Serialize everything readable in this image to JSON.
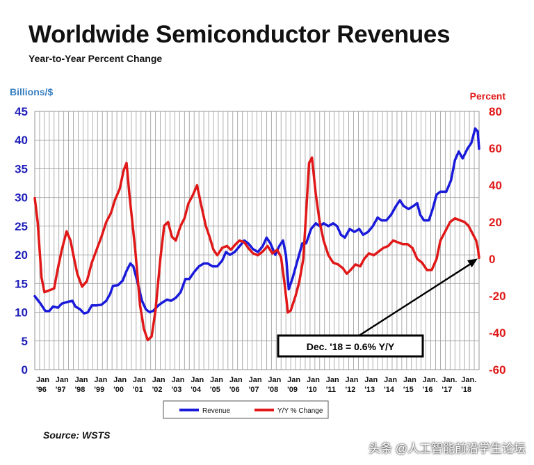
{
  "page": {
    "title": "Worldwide Semiconductor Revenues",
    "subtitle": "Year-to-Year Percent Change",
    "source": "Source: WSTS",
    "watermark": "头条 @人工智能前沿学生论坛"
  },
  "chart_data": {
    "type": "line",
    "title": "Worldwide Semiconductor Revenues",
    "subtitle": "Year-to-Year Percent Change",
    "left_axis_label": "Billions/$",
    "right_axis_label": "Percent",
    "left_ylim": [
      0,
      45
    ],
    "right_ylim": [
      -60,
      80
    ],
    "left_ticks": [
      "0",
      "5",
      "10",
      "15",
      "20",
      "25",
      "30",
      "35",
      "40",
      "45"
    ],
    "right_ticks": [
      "-60",
      "-40",
      "-20",
      "0",
      "20",
      "40",
      "60",
      "80"
    ],
    "x_range": [
      1996.0,
      2019.0
    ],
    "x_tick_labels": [
      {
        "line1": "Jan",
        "line2": "'96"
      },
      {
        "line1": "Jan",
        "line2": "'97"
      },
      {
        "line1": "Jan",
        "line2": "'98"
      },
      {
        "line1": "Jan",
        "line2": "'99"
      },
      {
        "line1": "Jan",
        "line2": "'00"
      },
      {
        "line1": "Jan",
        "line2": "'01"
      },
      {
        "line1": "Jan",
        "line2": "'02"
      },
      {
        "line1": "Jan",
        "line2": "'03"
      },
      {
        "line1": "Jan",
        "line2": "'04"
      },
      {
        "line1": "Jan",
        "line2": "'05"
      },
      {
        "line1": "Jan",
        "line2": "'06"
      },
      {
        "line1": "Jan",
        "line2": "'07"
      },
      {
        "line1": "Jan",
        "line2": "'08"
      },
      {
        "line1": "Jan",
        "line2": "'09"
      },
      {
        "line1": "Jan",
        "line2": "'10"
      },
      {
        "line1": "Jan",
        "line2": "'11"
      },
      {
        "line1": "Jan",
        "line2": "'12"
      },
      {
        "line1": "Jan",
        "line2": "'13"
      },
      {
        "line1": "Jan",
        "line2": "'14"
      },
      {
        "line1": "Jan",
        "line2": "'15"
      },
      {
        "line1": "Jan.",
        "line2": "'16"
      },
      {
        "line1": "Jan.",
        "line2": "'17"
      },
      {
        "line1": "Jan.",
        "line2": "'18"
      }
    ],
    "grid": true,
    "legend_position": "bottom-center",
    "series": [
      {
        "name": "Revenue",
        "axis": "left",
        "color": "#1a1adb",
        "points": [
          [
            1996.0,
            12.8
          ],
          [
            1996.3,
            11.5
          ],
          [
            1996.55,
            10.2
          ],
          [
            1996.75,
            10.2
          ],
          [
            1996.95,
            11.0
          ],
          [
            1997.2,
            10.8
          ],
          [
            1997.4,
            11.5
          ],
          [
            1997.7,
            11.8
          ],
          [
            1997.95,
            12.0
          ],
          [
            1998.1,
            11.0
          ],
          [
            1998.35,
            10.5
          ],
          [
            1998.55,
            9.8
          ],
          [
            1998.75,
            10.0
          ],
          [
            1998.95,
            11.2
          ],
          [
            1999.2,
            11.2
          ],
          [
            1999.45,
            11.3
          ],
          [
            1999.7,
            12.0
          ],
          [
            1999.9,
            13.2
          ],
          [
            2000.05,
            14.6
          ],
          [
            2000.3,
            14.7
          ],
          [
            2000.55,
            15.5
          ],
          [
            2000.75,
            17.2
          ],
          [
            2000.95,
            18.5
          ],
          [
            2001.1,
            18.0
          ],
          [
            2001.3,
            15.5
          ],
          [
            2001.55,
            12.0
          ],
          [
            2001.75,
            10.5
          ],
          [
            2001.95,
            10.0
          ],
          [
            2002.15,
            10.3
          ],
          [
            2002.4,
            11.2
          ],
          [
            2002.65,
            11.8
          ],
          [
            2002.85,
            12.2
          ],
          [
            2003.05,
            12.0
          ],
          [
            2003.3,
            12.5
          ],
          [
            2003.55,
            13.5
          ],
          [
            2003.8,
            15.8
          ],
          [
            2004.0,
            15.8
          ],
          [
            2004.25,
            17.0
          ],
          [
            2004.5,
            18.0
          ],
          [
            2004.75,
            18.5
          ],
          [
            2004.95,
            18.5
          ],
          [
            2005.2,
            18.0
          ],
          [
            2005.45,
            18.0
          ],
          [
            2005.7,
            19.0
          ],
          [
            2005.9,
            20.5
          ],
          [
            2006.1,
            20.0
          ],
          [
            2006.35,
            20.5
          ],
          [
            2006.6,
            21.5
          ],
          [
            2006.85,
            22.5
          ],
          [
            2007.05,
            22.0
          ],
          [
            2007.3,
            21.0
          ],
          [
            2007.55,
            20.5
          ],
          [
            2007.8,
            21.5
          ],
          [
            2008.0,
            23.0
          ],
          [
            2008.2,
            22.0
          ],
          [
            2008.45,
            20.0
          ],
          [
            2008.65,
            21.5
          ],
          [
            2008.85,
            22.5
          ],
          [
            2009.0,
            20.0
          ],
          [
            2009.15,
            14.0
          ],
          [
            2009.35,
            16.0
          ],
          [
            2009.6,
            19.0
          ],
          [
            2009.85,
            22.0
          ],
          [
            2010.05,
            22.0
          ],
          [
            2010.3,
            24.5
          ],
          [
            2010.55,
            25.5
          ],
          [
            2010.75,
            25.0
          ],
          [
            2010.95,
            25.5
          ],
          [
            2011.2,
            25.0
          ],
          [
            2011.45,
            25.5
          ],
          [
            2011.65,
            25.0
          ],
          [
            2011.85,
            23.5
          ],
          [
            2012.05,
            23.0
          ],
          [
            2012.3,
            24.5
          ],
          [
            2012.55,
            24.0
          ],
          [
            2012.8,
            24.5
          ],
          [
            2013.0,
            23.5
          ],
          [
            2013.25,
            24.0
          ],
          [
            2013.5,
            25.0
          ],
          [
            2013.75,
            26.5
          ],
          [
            2013.95,
            26.0
          ],
          [
            2014.2,
            26.0
          ],
          [
            2014.45,
            27.0
          ],
          [
            2014.7,
            28.5
          ],
          [
            2014.9,
            29.5
          ],
          [
            2015.1,
            28.5
          ],
          [
            2015.35,
            28.0
          ],
          [
            2015.6,
            28.5
          ],
          [
            2015.8,
            29.0
          ],
          [
            2015.95,
            27.0
          ],
          [
            2016.15,
            26.0
          ],
          [
            2016.4,
            26.0
          ],
          [
            2016.6,
            28.0
          ],
          [
            2016.8,
            30.5
          ],
          [
            2017.0,
            31.0
          ],
          [
            2017.3,
            31.0
          ],
          [
            2017.55,
            33.0
          ],
          [
            2017.75,
            36.5
          ],
          [
            2017.95,
            38.0
          ],
          [
            2018.15,
            36.8
          ],
          [
            2018.4,
            38.5
          ],
          [
            2018.6,
            39.5
          ],
          [
            2018.8,
            42.0
          ],
          [
            2018.93,
            41.5
          ],
          [
            2019.0,
            38.5
          ]
        ]
      },
      {
        "name": "Y/Y % Change",
        "axis": "right",
        "color": "#e01818",
        "points": [
          [
            1996.0,
            33.0
          ],
          [
            1996.15,
            20.0
          ],
          [
            1996.35,
            -10.0
          ],
          [
            1996.5,
            -18.0
          ],
          [
            1996.75,
            -17.0
          ],
          [
            1997.0,
            -16.0
          ],
          [
            1997.2,
            -5.0
          ],
          [
            1997.4,
            5.0
          ],
          [
            1997.65,
            15.0
          ],
          [
            1997.85,
            10.0
          ],
          [
            1998.0,
            2.0
          ],
          [
            1998.2,
            -8.0
          ],
          [
            1998.45,
            -15.0
          ],
          [
            1998.7,
            -12.0
          ],
          [
            1998.95,
            -2.0
          ],
          [
            1999.2,
            5.0
          ],
          [
            1999.45,
            12.0
          ],
          [
            1999.7,
            20.0
          ],
          [
            1999.95,
            25.0
          ],
          [
            2000.15,
            32.0
          ],
          [
            2000.4,
            38.0
          ],
          [
            2000.6,
            48.0
          ],
          [
            2000.75,
            52.0
          ],
          [
            2000.9,
            35.0
          ],
          [
            2001.05,
            20.0
          ],
          [
            2001.2,
            5.0
          ],
          [
            2001.45,
            -25.0
          ],
          [
            2001.65,
            -38.0
          ],
          [
            2001.85,
            -44.0
          ],
          [
            2002.05,
            -42.0
          ],
          [
            2002.25,
            -28.0
          ],
          [
            2002.5,
            0.0
          ],
          [
            2002.7,
            18.0
          ],
          [
            2002.9,
            20.0
          ],
          [
            2003.1,
            12.0
          ],
          [
            2003.3,
            10.0
          ],
          [
            2003.55,
            18.0
          ],
          [
            2003.75,
            22.0
          ],
          [
            2003.95,
            30.0
          ],
          [
            2004.2,
            35.0
          ],
          [
            2004.4,
            40.0
          ],
          [
            2004.6,
            30.0
          ],
          [
            2004.85,
            18.0
          ],
          [
            2005.05,
            12.0
          ],
          [
            2005.25,
            5.0
          ],
          [
            2005.45,
            2.0
          ],
          [
            2005.7,
            6.0
          ],
          [
            2005.95,
            7.0
          ],
          [
            2006.15,
            5.0
          ],
          [
            2006.4,
            8.0
          ],
          [
            2006.6,
            10.0
          ],
          [
            2006.85,
            9.0
          ],
          [
            2007.05,
            6.0
          ],
          [
            2007.3,
            3.0
          ],
          [
            2007.55,
            2.0
          ],
          [
            2007.8,
            4.0
          ],
          [
            2008.05,
            7.0
          ],
          [
            2008.3,
            3.0
          ],
          [
            2008.55,
            5.0
          ],
          [
            2008.75,
            1.0
          ],
          [
            2008.95,
            -15.0
          ],
          [
            2009.1,
            -29.0
          ],
          [
            2009.25,
            -28.0
          ],
          [
            2009.5,
            -20.0
          ],
          [
            2009.7,
            -12.0
          ],
          [
            2009.9,
            0.0
          ],
          [
            2010.05,
            25.0
          ],
          [
            2010.2,
            52.0
          ],
          [
            2010.35,
            55.0
          ],
          [
            2010.55,
            35.0
          ],
          [
            2010.75,
            20.0
          ],
          [
            2010.95,
            10.0
          ],
          [
            2011.2,
            2.0
          ],
          [
            2011.45,
            -2.0
          ],
          [
            2011.7,
            -3.0
          ],
          [
            2011.95,
            -5.0
          ],
          [
            2012.15,
            -8.0
          ],
          [
            2012.35,
            -6.0
          ],
          [
            2012.6,
            -3.0
          ],
          [
            2012.85,
            -4.0
          ],
          [
            2013.05,
            0.0
          ],
          [
            2013.3,
            3.0
          ],
          [
            2013.55,
            2.0
          ],
          [
            2013.8,
            4.0
          ],
          [
            2014.05,
            6.0
          ],
          [
            2014.3,
            7.0
          ],
          [
            2014.55,
            10.0
          ],
          [
            2014.8,
            9.0
          ],
          [
            2015.05,
            8.0
          ],
          [
            2015.3,
            8.0
          ],
          [
            2015.55,
            6.0
          ],
          [
            2015.8,
            0.0
          ],
          [
            2016.05,
            -2.0
          ],
          [
            2016.3,
            -6.0
          ],
          [
            2016.55,
            -6.0
          ],
          [
            2016.8,
            0.0
          ],
          [
            2017.0,
            10.0
          ],
          [
            2017.25,
            15.0
          ],
          [
            2017.5,
            20.0
          ],
          [
            2017.75,
            22.0
          ],
          [
            2018.0,
            21.0
          ],
          [
            2018.25,
            20.0
          ],
          [
            2018.45,
            18.0
          ],
          [
            2018.65,
            14.0
          ],
          [
            2018.85,
            10.0
          ],
          [
            2018.95,
            5.0
          ],
          [
            2019.0,
            0.6
          ]
        ]
      }
    ],
    "annotation": {
      "text": "Dec. '18 = 0.6% Y/Y",
      "x": 2019.0,
      "y_right": 0.6
    },
    "legend": [
      {
        "label": "Revenue",
        "color": "#1a1adb"
      },
      {
        "label": "Y/Y % Change",
        "color": "#e01818"
      }
    ]
  }
}
